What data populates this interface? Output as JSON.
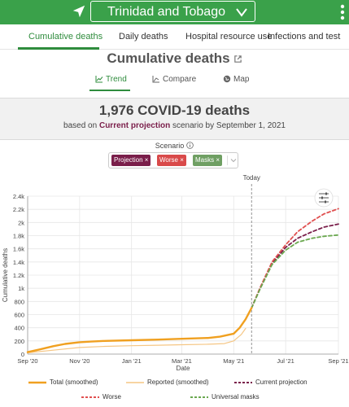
{
  "header": {
    "country": "Trinidad and Tobago",
    "colors": {
      "bar": "#3aa14a"
    }
  },
  "tabs": [
    {
      "label": "Cumulative deaths"
    },
    {
      "label": "Daily deaths"
    },
    {
      "label": "Hospital resource use"
    },
    {
      "label": "Infections and test"
    }
  ],
  "page": {
    "title": "Cumulative deaths"
  },
  "view_tabs": [
    {
      "label": "Trend"
    },
    {
      "label": "Compare"
    },
    {
      "label": "Map"
    }
  ],
  "summary": {
    "headline": "1,976 COVID-19 deaths",
    "sub_prefix": "based on ",
    "sub_scenario": "Current projection",
    "sub_suffix": " scenario by September 1, 2021"
  },
  "scenario": {
    "label": "Scenario",
    "chips": [
      {
        "label": "Projection",
        "color": "#7a1e4a"
      },
      {
        "label": "Worse",
        "color": "#d94a4a"
      },
      {
        "label": "Masks",
        "color": "#6f9f63"
      }
    ]
  },
  "chart_data": {
    "type": "line",
    "xlabel": "Date",
    "ylabel": "Cumulative deaths",
    "ylim": [
      0,
      2400
    ],
    "yticks": [
      0,
      200,
      400,
      600,
      800,
      1000,
      1200,
      1400,
      1600,
      1800,
      2000,
      2200,
      2400
    ],
    "ytick_labels": [
      "0",
      "200",
      "400",
      "600",
      "800",
      "1k",
      "1.2k",
      "1.4k",
      "1.6k",
      "1.8k",
      "2k",
      "2.2k",
      "2.4k"
    ],
    "xlim": [
      "2020-09-01",
      "2021-09-01"
    ],
    "xticks": [
      "2020-09-01",
      "2020-11-01",
      "2021-01-01",
      "2021-03-01",
      "2021-05-01",
      "2021-07-01",
      "2021-09-01"
    ],
    "xtick_labels": [
      "Sep '20",
      "Nov '20",
      "Jan '21",
      "Mar '21",
      "May '21",
      "Jul '21",
      "Sep '21"
    ],
    "today": {
      "label": "Today",
      "date": "2021-05-22"
    },
    "grid": true,
    "series": [
      {
        "name": "Total (smoothed)",
        "color": "#f0a020",
        "dash": "solid",
        "x": [
          "2020-09-01",
          "2020-09-15",
          "2020-10-01",
          "2020-10-15",
          "2020-11-01",
          "2020-11-15",
          "2020-12-01",
          "2021-01-01",
          "2021-02-01",
          "2021-03-01",
          "2021-04-01",
          "2021-04-15",
          "2021-05-01",
          "2021-05-08",
          "2021-05-15",
          "2021-05-22"
        ],
        "y": [
          30,
          70,
          120,
          155,
          180,
          190,
          200,
          210,
          220,
          232,
          245,
          265,
          310,
          400,
          530,
          700
        ]
      },
      {
        "name": "Reported (smoothed)",
        "color": "#f5c684",
        "dash": "solid",
        "x": [
          "2020-09-01",
          "2020-10-01",
          "2020-11-01",
          "2020-12-01",
          "2021-01-01",
          "2021-02-01",
          "2021-03-01",
          "2021-04-01",
          "2021-04-20",
          "2021-05-01",
          "2021-05-10",
          "2021-05-15"
        ],
        "y": [
          20,
          60,
          100,
          118,
          128,
          135,
          142,
          150,
          160,
          200,
          300,
          390
        ]
      },
      {
        "name": "Current projection",
        "color": "#7a1e4a",
        "dash": "dashed",
        "x": [
          "2021-05-22",
          "2021-06-01",
          "2021-06-15",
          "2021-07-01",
          "2021-07-15",
          "2021-08-01",
          "2021-08-15",
          "2021-09-01"
        ],
        "y": [
          700,
          1000,
          1380,
          1620,
          1760,
          1860,
          1930,
          1976
        ]
      },
      {
        "name": "Worse",
        "color": "#e05050",
        "dash": "dashed",
        "x": [
          "2021-05-22",
          "2021-06-01",
          "2021-06-15",
          "2021-07-01",
          "2021-07-15",
          "2021-08-01",
          "2021-08-15",
          "2021-09-01"
        ],
        "y": [
          700,
          1010,
          1400,
          1660,
          1860,
          2020,
          2130,
          2210
        ]
      },
      {
        "name": "Universal masks",
        "color": "#6aa84f",
        "dash": "dashed",
        "x": [
          "2021-05-22",
          "2021-06-01",
          "2021-06-15",
          "2021-07-01",
          "2021-07-15",
          "2021-08-01",
          "2021-08-15",
          "2021-09-01"
        ],
        "y": [
          700,
          990,
          1360,
          1580,
          1700,
          1760,
          1790,
          1810
        ]
      }
    ]
  },
  "legend": [
    {
      "label": "Total (smoothed)"
    },
    {
      "label": "Reported (smoothed)"
    },
    {
      "label": "Current projection"
    },
    {
      "label": "Worse"
    },
    {
      "label": "Universal masks"
    }
  ]
}
